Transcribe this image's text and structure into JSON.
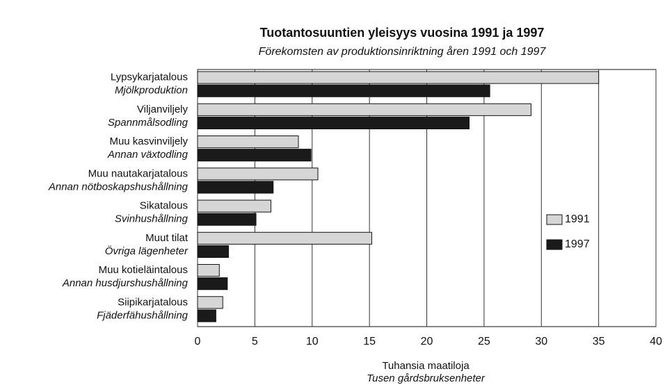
{
  "chart_data": {
    "type": "barh",
    "title": "Tuotantosuuntien yleisyys vuosina 1991 ja 1997",
    "subtitle": "Förekomsten av produktionsinriktning åren 1991 och 1997",
    "categories": [
      [
        "Lypsykarjatalous",
        "Mjölkproduktion"
      ],
      [
        "Viljanviljely",
        "Spannmålsodling"
      ],
      [
        "Muu kasvinviljely",
        "Annan växtodling"
      ],
      [
        "Muu nautakarjatalous",
        "Annan nötboskapshushållning"
      ],
      [
        "Sikatalous",
        "Svinhushållning"
      ],
      [
        "Muut tilat",
        "Övriga lägenheter"
      ],
      [
        "Muu kotieläintalous",
        "Annan husdjurshushållning"
      ],
      [
        "Siipikarjatalous",
        "Fjäderfähushållning"
      ]
    ],
    "series": [
      {
        "name": "1991",
        "color": "#d6d6d6",
        "values": [
          35.0,
          29.1,
          8.8,
          10.5,
          6.4,
          15.2,
          1.9,
          2.2
        ]
      },
      {
        "name": "1997",
        "color": "#1a1a1a",
        "values": [
          25.5,
          23.7,
          9.9,
          6.6,
          5.1,
          2.7,
          2.6,
          1.6
        ]
      }
    ],
    "xlabel": [
      "Tuhansia maatiloja",
      "Tusen gårdsbruksenheter"
    ],
    "xlim": [
      0,
      40
    ],
    "xticks": [
      0,
      5,
      10,
      15,
      20,
      25,
      30,
      35,
      40
    ],
    "grid": true,
    "legend": "right"
  }
}
